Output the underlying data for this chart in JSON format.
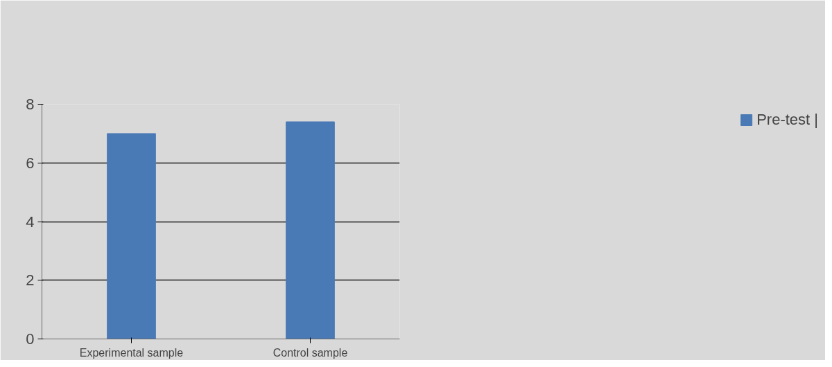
{
  "chart_data": {
    "type": "bar",
    "categories": [
      "Experimental sample",
      "Control sample"
    ],
    "series": [
      {
        "name": "Pre-test |",
        "color": "#4a7ab5",
        "values": [
          7.0,
          7.4
        ]
      }
    ],
    "ylim": [
      0,
      8
    ],
    "yticks": [
      0,
      2,
      4,
      6,
      8
    ],
    "grid": "y",
    "legend": "right"
  }
}
